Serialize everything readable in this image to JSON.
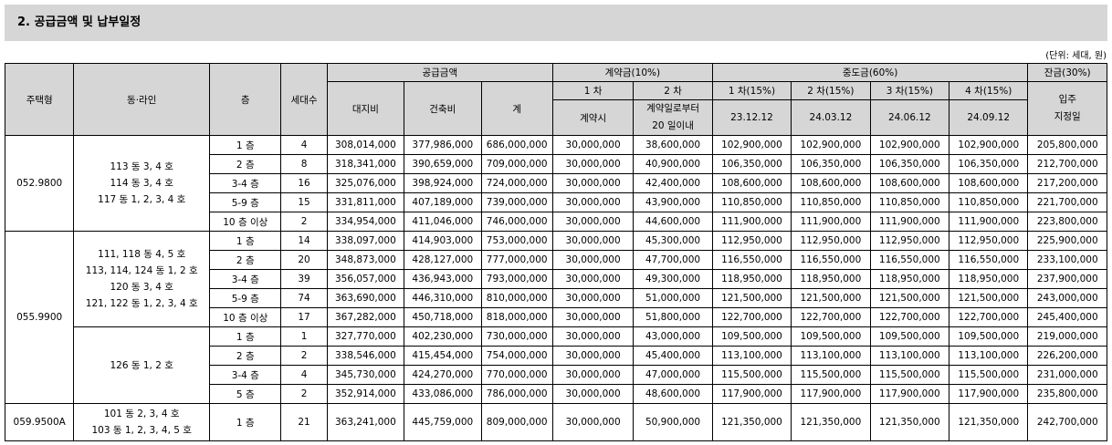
{
  "title": "2. 공급금액 및 납부일정",
  "unit_note": "(단위: 세대, 원)",
  "headers": {
    "type": "주택형",
    "dong_line": "동·라인",
    "floor": "층",
    "units": "세대수",
    "supply": "공급금액",
    "land": "대지비",
    "building": "건축비",
    "total": "계",
    "contract": "계약금(10%)",
    "c1": "1 차",
    "c2": "2 차",
    "c1_when": "계약시",
    "c2_when_1": "계약일로부터",
    "c2_when_2": "20 일이내",
    "middle": "중도금(60%)",
    "m1": "1 차(15%)",
    "m2": "2 차(15%)",
    "m3": "3 차(15%)",
    "m4": "4 차(15%)",
    "m1_date": "23.12.12",
    "m2_date": "24.03.12",
    "m3_date": "24.06.12",
    "m4_date": "24.09.12",
    "balance": "잔금(30%)",
    "balance_when_1": "입주",
    "balance_when_2": "지정일"
  },
  "groups": [
    {
      "type": "052.9800",
      "blocks": [
        {
          "dong": [
            "113 동 3, 4 호",
            "114 동 3, 4 호",
            "117 동 1, 2, 3, 4 호"
          ],
          "rows": [
            [
              "1 층",
              "4",
              "308,014,000",
              "377,986,000",
              "686,000,000",
              "30,000,000",
              "38,600,000",
              "102,900,000",
              "102,900,000",
              "102,900,000",
              "102,900,000",
              "205,800,000"
            ],
            [
              "2 층",
              "8",
              "318,341,000",
              "390,659,000",
              "709,000,000",
              "30,000,000",
              "40,900,000",
              "106,350,000",
              "106,350,000",
              "106,350,000",
              "106,350,000",
              "212,700,000"
            ],
            [
              "3-4 층",
              "16",
              "325,076,000",
              "398,924,000",
              "724,000,000",
              "30,000,000",
              "42,400,000",
              "108,600,000",
              "108,600,000",
              "108,600,000",
              "108,600,000",
              "217,200,000"
            ],
            [
              "5-9 층",
              "15",
              "331,811,000",
              "407,189,000",
              "739,000,000",
              "30,000,000",
              "43,900,000",
              "110,850,000",
              "110,850,000",
              "110,850,000",
              "110,850,000",
              "221,700,000"
            ],
            [
              "10 층 이상",
              "2",
              "334,954,000",
              "411,046,000",
              "746,000,000",
              "30,000,000",
              "44,600,000",
              "111,900,000",
              "111,900,000",
              "111,900,000",
              "111,900,000",
              "223,800,000"
            ]
          ]
        }
      ]
    },
    {
      "type": "055.9900",
      "blocks": [
        {
          "dong": [
            "111, 118 동 4, 5 호",
            "113, 114, 124 동 1, 2 호",
            "120 동 3, 4 호",
            "121, 122 동 1, 2, 3, 4 호"
          ],
          "rows": [
            [
              "1 층",
              "14",
              "338,097,000",
              "414,903,000",
              "753,000,000",
              "30,000,000",
              "45,300,000",
              "112,950,000",
              "112,950,000",
              "112,950,000",
              "112,950,000",
              "225,900,000"
            ],
            [
              "2 층",
              "20",
              "348,873,000",
              "428,127,000",
              "777,000,000",
              "30,000,000",
              "47,700,000",
              "116,550,000",
              "116,550,000",
              "116,550,000",
              "116,550,000",
              "233,100,000"
            ],
            [
              "3-4 층",
              "39",
              "356,057,000",
              "436,943,000",
              "793,000,000",
              "30,000,000",
              "49,300,000",
              "118,950,000",
              "118,950,000",
              "118,950,000",
              "118,950,000",
              "237,900,000"
            ],
            [
              "5-9 층",
              "74",
              "363,690,000",
              "446,310,000",
              "810,000,000",
              "30,000,000",
              "51,000,000",
              "121,500,000",
              "121,500,000",
              "121,500,000",
              "121,500,000",
              "243,000,000"
            ],
            [
              "10 층 이상",
              "17",
              "367,282,000",
              "450,718,000",
              "818,000,000",
              "30,000,000",
              "51,800,000",
              "122,700,000",
              "122,700,000",
              "122,700,000",
              "122,700,000",
              "245,400,000"
            ]
          ]
        },
        {
          "dong": [
            "126 동 1, 2 호"
          ],
          "rows": [
            [
              "1 층",
              "1",
              "327,770,000",
              "402,230,000",
              "730,000,000",
              "30,000,000",
              "43,000,000",
              "109,500,000",
              "109,500,000",
              "109,500,000",
              "109,500,000",
              "219,000,000"
            ],
            [
              "2 층",
              "2",
              "338,546,000",
              "415,454,000",
              "754,000,000",
              "30,000,000",
              "45,400,000",
              "113,100,000",
              "113,100,000",
              "113,100,000",
              "113,100,000",
              "226,200,000"
            ],
            [
              "3-4 층",
              "4",
              "345,730,000",
              "424,270,000",
              "770,000,000",
              "30,000,000",
              "47,000,000",
              "115,500,000",
              "115,500,000",
              "115,500,000",
              "115,500,000",
              "231,000,000"
            ],
            [
              "5 층",
              "2",
              "352,914,000",
              "433,086,000",
              "786,000,000",
              "30,000,000",
              "48,600,000",
              "117,900,000",
              "117,900,000",
              "117,900,000",
              "117,900,000",
              "235,800,000"
            ]
          ]
        }
      ]
    },
    {
      "type": "059.9500A",
      "tall": true,
      "blocks": [
        {
          "dong": [
            "101 동 2, 3, 4 호",
            "103 동 1, 2, 3, 4, 5 호"
          ],
          "rows": [
            [
              "1 층",
              "21",
              "363,241,000",
              "445,759,000",
              "809,000,000",
              "30,000,000",
              "50,900,000",
              "121,350,000",
              "121,350,000",
              "121,350,000",
              "121,350,000",
              "242,700,000"
            ]
          ]
        }
      ]
    }
  ]
}
